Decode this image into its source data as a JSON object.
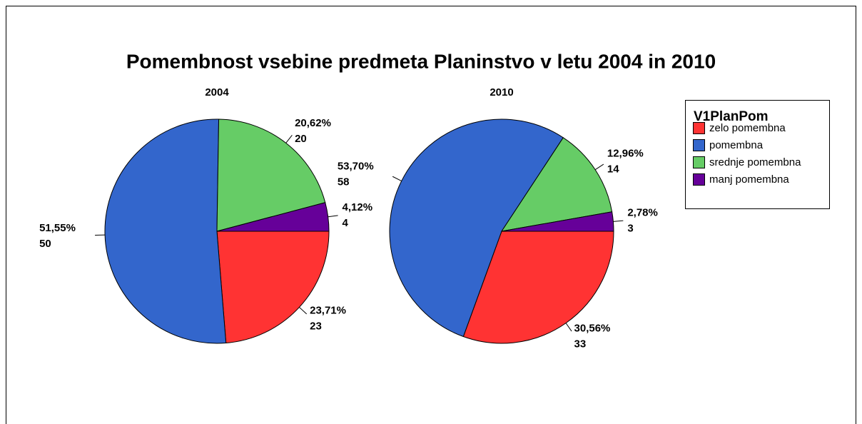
{
  "title": "Pomembnost vsebine predmeta Planinstvo v letu 2004 in 2010",
  "legend": {
    "title": "V1PlanPom",
    "position": "right"
  },
  "chart_data": [
    {
      "type": "pie",
      "title": "2004",
      "categories": [
        "zelo pomembna",
        "pomembna",
        "srednje pomembna",
        "manj pomembna"
      ],
      "colors": [
        "#ff3333",
        "#3366cc",
        "#66cc66",
        "#660099"
      ],
      "values": [
        23,
        50,
        20,
        4
      ],
      "percentages": [
        23.71,
        51.55,
        20.62,
        4.12
      ],
      "percentage_labels": [
        "23,71%",
        "51,55%",
        "20,62%",
        "4,12%"
      ]
    },
    {
      "type": "pie",
      "title": "2010",
      "categories": [
        "zelo pomembna",
        "pomembna",
        "srednje pomembna",
        "manj pomembna"
      ],
      "colors": [
        "#ff3333",
        "#3366cc",
        "#66cc66",
        "#660099"
      ],
      "values": [
        33,
        58,
        14,
        3
      ],
      "percentages": [
        30.56,
        53.7,
        12.96,
        2.78
      ],
      "percentage_labels": [
        "30,56%",
        "53,70%",
        "12,96%",
        "2,78%"
      ]
    }
  ]
}
